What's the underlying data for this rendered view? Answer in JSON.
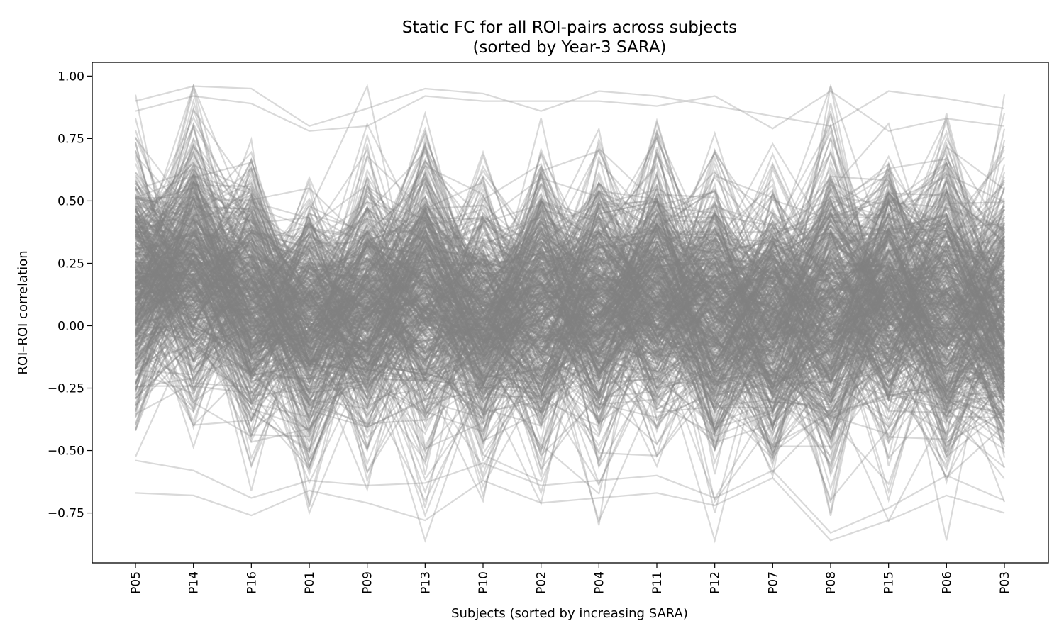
{
  "chart_data": {
    "type": "line",
    "title": "Static FC for all ROI-pairs across subjects",
    "subtitle": "(sorted by Year-3 SARA)",
    "xlabel": "Subjects (sorted by increasing SARA)",
    "ylabel": "ROI–ROI correlation",
    "categories": [
      "P05",
      "P14",
      "P16",
      "P01",
      "P09",
      "P13",
      "P10",
      "P02",
      "P04",
      "P11",
      "P12",
      "P07",
      "P08",
      "P15",
      "P06",
      "P03"
    ],
    "ylim": [
      -0.95,
      1.055
    ],
    "yticks": [
      -0.75,
      -0.5,
      -0.25,
      0.0,
      0.25,
      0.5,
      0.75,
      1.0
    ],
    "ytick_labels": [
      "−0.75",
      "−0.50",
      "−0.25",
      "0.00",
      "0.25",
      "0.50",
      "0.75",
      "1.00"
    ],
    "line_color": "#808080",
    "line_opacity": 0.3,
    "grid": false,
    "legend": "none",
    "subject_center": [
      0.16,
      0.22,
      0.08,
      0.0,
      0.05,
      0.12,
      0.02,
      0.1,
      0.08,
      0.14,
      0.06,
      0.03,
      0.05,
      0.1,
      0.08,
      0.0
    ],
    "subject_spread": [
      0.24,
      0.26,
      0.26,
      0.24,
      0.24,
      0.28,
      0.24,
      0.27,
      0.26,
      0.26,
      0.27,
      0.24,
      0.31,
      0.26,
      0.27,
      0.26
    ],
    "series": [
      {
        "values": [
          0.9,
          0.96,
          0.95,
          0.8,
          0.87,
          0.95,
          0.93,
          0.86,
          0.94,
          0.92,
          0.88,
          0.84,
          0.8,
          0.94,
          0.91,
          0.87
        ]
      },
      {
        "values": [
          0.86,
          0.92,
          0.89,
          0.78,
          0.8,
          0.92,
          0.9,
          0.9,
          0.9,
          0.88,
          0.92,
          0.79,
          0.94,
          0.78,
          0.83,
          0.8
        ]
      },
      {
        "values": [
          -0.67,
          -0.68,
          -0.76,
          -0.66,
          -0.71,
          -0.78,
          -0.62,
          -0.71,
          -0.69,
          -0.67,
          -0.72,
          -0.61,
          -0.86,
          -0.78,
          -0.68,
          -0.75
        ]
      },
      {
        "values": [
          -0.54,
          -0.58,
          -0.69,
          -0.62,
          -0.64,
          -0.63,
          -0.55,
          -0.64,
          -0.62,
          -0.6,
          -0.69,
          -0.58,
          -0.83,
          -0.73,
          -0.6,
          -0.7
        ]
      }
    ]
  }
}
